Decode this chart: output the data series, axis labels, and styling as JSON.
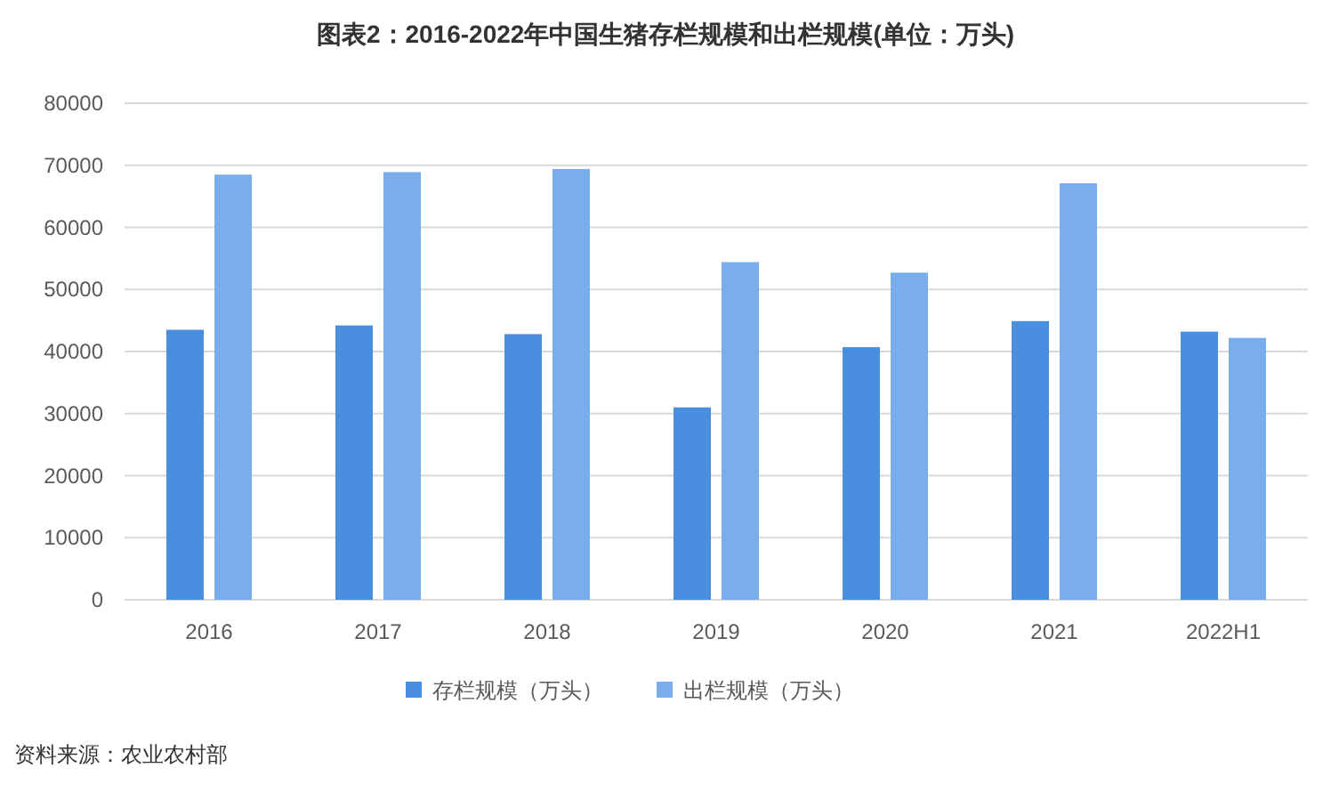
{
  "chart_data": {
    "type": "bar",
    "title": "图表2：2016-2022年中国生猪存栏规模和出栏规模(单位：万头)",
    "categories": [
      "2016",
      "2017",
      "2018",
      "2019",
      "2020",
      "2021",
      "2022H1"
    ],
    "series": [
      {
        "name": "存栏规模（万头）",
        "color": "#4a8ee0",
        "values": [
          43500,
          44200,
          42800,
          31000,
          40700,
          44900,
          43200
        ]
      },
      {
        "name": "出栏规模（万头）",
        "color": "#7aaeea",
        "values": [
          68500,
          68900,
          69400,
          54400,
          52700,
          67100,
          42200
        ]
      }
    ],
    "ylim": [
      0,
      80000
    ],
    "yticks": [
      0,
      10000,
      20000,
      30000,
      40000,
      50000,
      60000,
      70000,
      80000
    ],
    "grid": "y",
    "legend": "bottom",
    "annotations": [
      "资料来源：农业农村部"
    ]
  }
}
